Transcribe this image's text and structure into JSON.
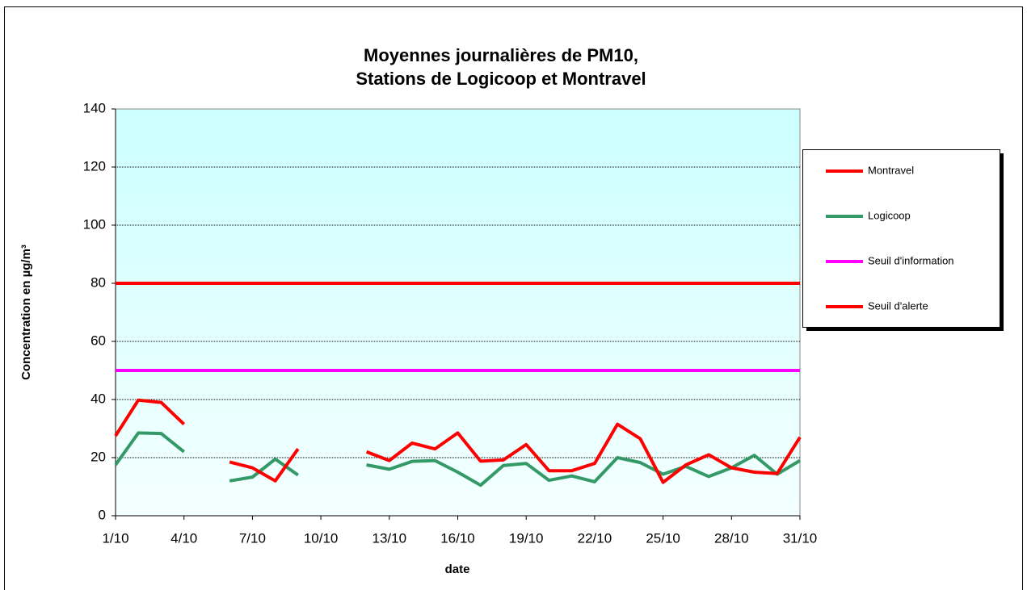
{
  "chart_data": {
    "type": "line",
    "title": [
      "Moyennes journalières de PM10,",
      "Stations de Logicoop et Montravel"
    ],
    "xlabel": "date",
    "ylabel": "Concentration en µg/m³",
    "categories": [
      "1/10",
      null,
      null,
      "4/10",
      null,
      null,
      "7/10",
      null,
      null,
      "10/10",
      null,
      null,
      "13/10",
      null,
      null,
      "16/10",
      null,
      null,
      "19/10",
      null,
      null,
      "22/10",
      null,
      null,
      "25/10",
      null,
      null,
      "28/10",
      null,
      null,
      "31/10"
    ],
    "series": [
      {
        "name": "Montravel",
        "color": "#ff0000",
        "values": [
          27.5,
          39.8,
          39,
          31.5,
          null,
          18.5,
          16.5,
          12,
          23,
          null,
          null,
          22,
          19,
          25,
          23,
          28.5,
          18.8,
          19.2,
          24.5,
          15.5,
          15.5,
          18,
          31.5,
          26.5,
          11.5,
          17.5,
          21,
          16.5,
          15,
          14.5,
          27
        ]
      },
      {
        "name": "Logicoop",
        "color": "#339966",
        "values": [
          17.5,
          28.5,
          28.3,
          22,
          null,
          12,
          13.3,
          19.5,
          14,
          null,
          null,
          17.5,
          16,
          18.7,
          19,
          15,
          10.5,
          17.3,
          18,
          12.2,
          13.7,
          11.7,
          20,
          18.3,
          14.3,
          17,
          13.5,
          16.5,
          20.8,
          14.3,
          19
        ]
      },
      {
        "name": "Seuil d'information",
        "color": "#ff00ff",
        "values": [
          50,
          50,
          50,
          50,
          50,
          50,
          50,
          50,
          50,
          50,
          50,
          50,
          50,
          50,
          50,
          50,
          50,
          50,
          50,
          50,
          50,
          50,
          50,
          50,
          50,
          50,
          50,
          50,
          50,
          50,
          50
        ]
      },
      {
        "name": "Seuil d'alerte",
        "color": "#ff0000",
        "values": [
          80,
          80,
          80,
          80,
          80,
          80,
          80,
          80,
          80,
          80,
          80,
          80,
          80,
          80,
          80,
          80,
          80,
          80,
          80,
          80,
          80,
          80,
          80,
          80,
          80,
          80,
          80,
          80,
          80,
          80,
          80
        ]
      }
    ],
    "ylim": [
      0,
      140
    ],
    "yticks": [
      0,
      20,
      40,
      60,
      80,
      100,
      120,
      140
    ],
    "grid": true
  }
}
